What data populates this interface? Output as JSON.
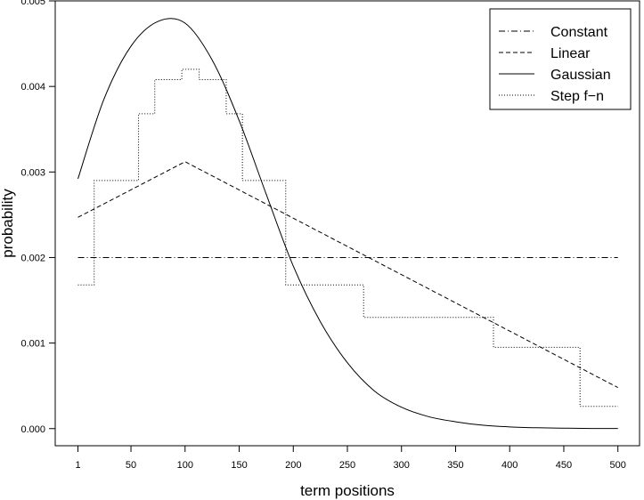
{
  "chart_data": {
    "type": "line",
    "title": "",
    "xlabel": "term positions",
    "ylabel": "probability",
    "xlim": [
      -20,
      520
    ],
    "ylim": [
      -0.0002,
      0.005
    ],
    "xticks": [
      1,
      50,
      100,
      150,
      200,
      250,
      300,
      350,
      400,
      450,
      500
    ],
    "yticks": [
      "0.000",
      "0.001",
      "0.002",
      "0.003",
      "0.004",
      "0.005"
    ],
    "grid": false,
    "legend_position": "top-right",
    "series": [
      {
        "name": "Constant",
        "style": "dashdot",
        "x": [
          1,
          500
        ],
        "y": [
          0.002,
          0.002
        ]
      },
      {
        "name": "Linear",
        "style": "dashed",
        "x": [
          1,
          100,
          500
        ],
        "y": [
          0.00247,
          0.00312,
          0.00048
        ]
      },
      {
        "name": "Gaussian",
        "style": "solid",
        "x": [
          1,
          25,
          50,
          75,
          100,
          125,
          150,
          175,
          200,
          225,
          250,
          275,
          300,
          325,
          350,
          375,
          400,
          425,
          450,
          475,
          500
        ],
        "y": [
          0.00292,
          0.00385,
          0.00447,
          0.00476,
          0.00474,
          0.00431,
          0.0036,
          0.00274,
          0.0019,
          0.00125,
          0.00077,
          0.00044,
          0.00025,
          0.00014,
          8e-05,
          4e-05,
          2e-05,
          1e-05,
          5e-06,
          2e-06,
          1e-06
        ]
      },
      {
        "name": "Step f−n",
        "style": "dotted",
        "step": true,
        "x": [
          1,
          16,
          57,
          72,
          97,
          113,
          138,
          153,
          193,
          265,
          385,
          465,
          500
        ],
        "y": [
          0.00168,
          0.0029,
          0.00368,
          0.00408,
          0.0042,
          0.00408,
          0.00368,
          0.0029,
          0.00168,
          0.0013,
          0.00095,
          0.00026,
          0.00026
        ]
      }
    ]
  }
}
